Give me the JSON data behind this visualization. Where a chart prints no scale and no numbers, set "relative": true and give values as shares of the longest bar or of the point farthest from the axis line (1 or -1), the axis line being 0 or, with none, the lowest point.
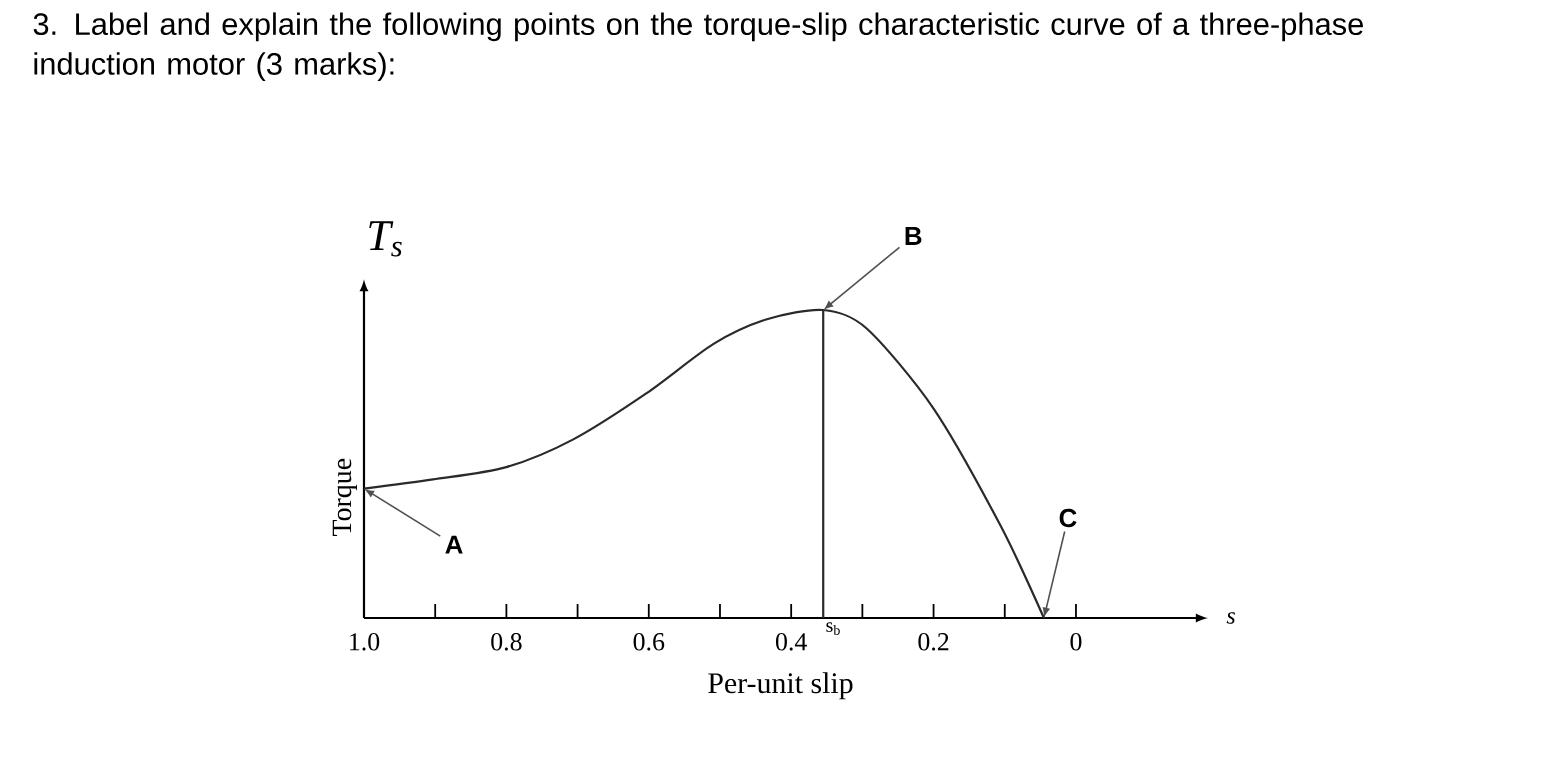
{
  "chart_data": {
    "type": "line",
    "title": "3. Label and explain the following points on the torque-slip characteristic curve of a three-phase induction motor (3 marks):",
    "xlabel": "Per-unit slip",
    "ylabel": "Torque",
    "relative": true,
    "color": "#2a2a2a",
    "x": [
      1.0,
      0.903,
      0.8,
      0.706,
      0.603,
      0.509,
      0.434,
      0.355,
      0.294,
      0.2,
      0.106,
      0.045
    ],
    "values": [
      0.42,
      0.45,
      0.49,
      0.58,
      0.73,
      0.89,
      0.97,
      1.0,
      0.94,
      0.68,
      0.3,
      0.0
    ],
    "xlim": [
      1.0,
      -0.17
    ],
    "xticks": [
      {
        "value": 1.0,
        "label": "1.0"
      },
      {
        "value": 0.9,
        "label": null
      },
      0.8,
      {
        "value": 0.7,
        "label": null
      },
      0.6,
      {
        "value": 0.5,
        "label": null
      },
      0.4,
      {
        "value": 0.3,
        "label": null
      },
      0.2,
      {
        "value": 0.1,
        "label": null
      },
      0
    ],
    "ref_lines": [
      {
        "axis": "x",
        "value": 0.355,
        "label": "s$_{b}$"
      }
    ],
    "annotations": [
      "T$_{s}$",
      "s",
      {
        "text": "A",
        "x": 1.0,
        "y": 0.42
      },
      {
        "text": "B",
        "x": 0.355,
        "y": 1.0
      },
      {
        "text": "C",
        "x": 0.045,
        "y": 0.0
      }
    ]
  }
}
